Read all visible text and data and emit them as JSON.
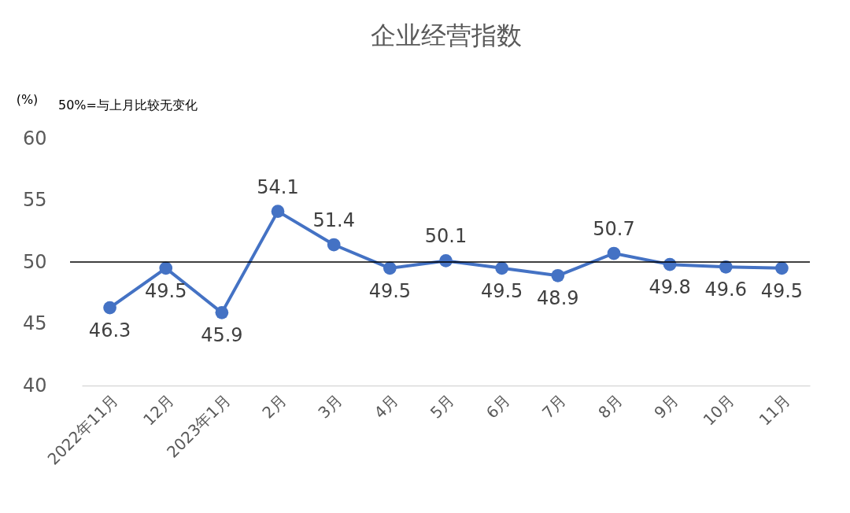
{
  "chart_data": {
    "type": "line",
    "title": "企业经营指数",
    "ylabel": "(%)",
    "annotations": [
      "50%=与上月比较无变化"
    ],
    "categories": [
      "2022年11月",
      "12月",
      "2023年1月",
      "2月",
      "3月",
      "4月",
      "5月",
      "6月",
      "7月",
      "8月",
      "9月",
      "10月",
      "11月"
    ],
    "series": [
      {
        "color": "#4472c4",
        "values": [
          46.3,
          49.5,
          45.9,
          54.1,
          51.4,
          49.5,
          50.1,
          49.5,
          48.9,
          50.7,
          49.8,
          49.6,
          49.5
        ]
      }
    ],
    "ylim": [
      40,
      60
    ],
    "yticks": [
      40,
      45,
      50,
      55,
      60
    ],
    "grid": false,
    "legend": false,
    "marker": "circle",
    "line_style": "solid",
    "data_labels": true,
    "ref_lines": [
      {
        "axis": "y",
        "value": 50,
        "label": null,
        "color": "#000000"
      }
    ]
  }
}
